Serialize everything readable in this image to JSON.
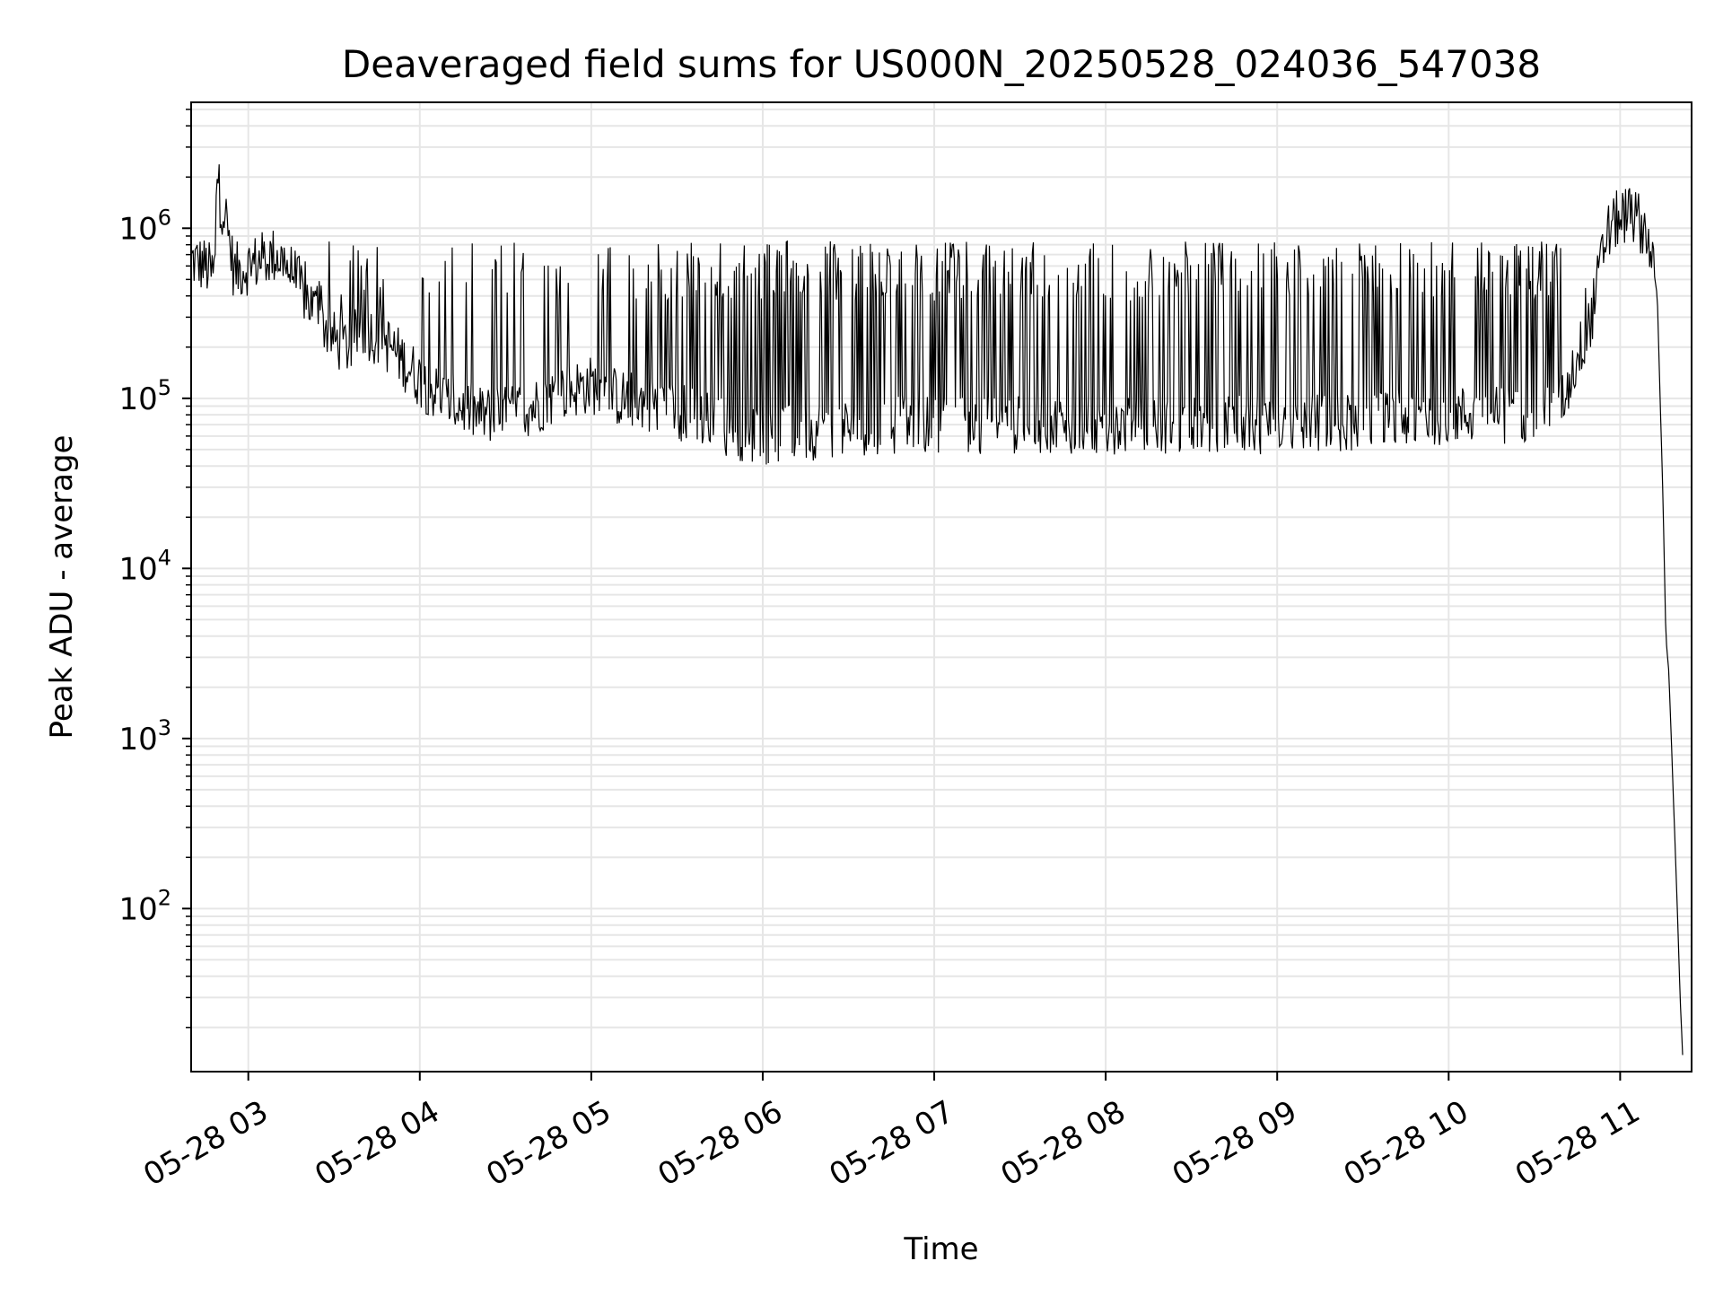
{
  "chart_data": {
    "type": "line",
    "title": "Deaveraged field sums for US000N_20250528_024036_547038",
    "xlabel": "Time",
    "ylabel": "Peak ADU - average",
    "xscale": "time",
    "yscale": "log",
    "xlim": [
      "2025-05-28 02:40",
      "2025-05-28 11:25"
    ],
    "ylim": [
      11,
      5500000
    ],
    "grid": true,
    "line_color": "#000000",
    "grid_color": "#e6e6e6",
    "x_ticks": [
      {
        "label": "05-28 03",
        "value": "2025-05-28 03:00"
      },
      {
        "label": "05-28 04",
        "value": "2025-05-28 04:00"
      },
      {
        "label": "05-28 05",
        "value": "2025-05-28 05:00"
      },
      {
        "label": "05-28 06",
        "value": "2025-05-28 06:00"
      },
      {
        "label": "05-28 07",
        "value": "2025-05-28 07:00"
      },
      {
        "label": "05-28 08",
        "value": "2025-05-28 08:00"
      },
      {
        "label": "05-28 09",
        "value": "2025-05-28 09:00"
      },
      {
        "label": "05-28 10",
        "value": "2025-05-28 10:00"
      },
      {
        "label": "05-28 11",
        "value": "2025-05-28 11:00"
      }
    ],
    "y_ticks": [
      {
        "base": "10",
        "exp": "2",
        "value": 100
      },
      {
        "base": "10",
        "exp": "3",
        "value": 1000
      },
      {
        "base": "10",
        "exp": "4",
        "value": 10000
      },
      {
        "base": "10",
        "exp": "5",
        "value": 100000
      },
      {
        "base": "10",
        "exp": "6",
        "value": 1000000
      }
    ],
    "series": [
      {
        "x": [
          "2025-05-28 02:40",
          "2025-05-28 02:45",
          "2025-05-28 02:48",
          "2025-05-28 02:49",
          "2025-05-28 02:50",
          "2025-05-28 02:52",
          "2025-05-28 02:55",
          "2025-05-28 03:00",
          "2025-05-28 03:05",
          "2025-05-28 03:10",
          "2025-05-28 03:15",
          "2025-05-28 03:20",
          "2025-05-28 03:25",
          "2025-05-28 03:30",
          "2025-05-28 03:35",
          "2025-05-28 03:40",
          "2025-05-28 03:45",
          "2025-05-28 03:50",
          "2025-05-28 03:55",
          "2025-05-28 04:00",
          "2025-05-28 04:05",
          "2025-05-28 04:10",
          "2025-05-28 04:15",
          "2025-05-28 04:20",
          "2025-05-28 04:30",
          "2025-05-28 04:40",
          "2025-05-28 04:50",
          "2025-05-28 05:00",
          "2025-05-28 05:10",
          "2025-05-28 05:20",
          "2025-05-28 05:30",
          "2025-05-28 05:40",
          "2025-05-28 05:50",
          "2025-05-28 06:00",
          "2025-05-28 06:20",
          "2025-05-28 06:40",
          "2025-05-28 07:00",
          "2025-05-28 07:20",
          "2025-05-28 07:40",
          "2025-05-28 08:00",
          "2025-05-28 08:20",
          "2025-05-28 08:40",
          "2025-05-28 09:00",
          "2025-05-28 09:20",
          "2025-05-28 09:40",
          "2025-05-28 10:00",
          "2025-05-28 10:20",
          "2025-05-28 10:30",
          "2025-05-28 10:40",
          "2025-05-28 10:50",
          "2025-05-28 10:55",
          "2025-05-28 11:00",
          "2025-05-28 11:05",
          "2025-05-28 11:10",
          "2025-05-28 11:13",
          "2025-05-28 11:15",
          "2025-05-28 11:16",
          "2025-05-28 11:17",
          "2025-05-28 11:18",
          "2025-05-28 11:19",
          "2025-05-28 11:20",
          "2025-05-28 11:21",
          "2025-05-28 11:22"
        ],
        "y": [
          650000,
          600000,
          520000,
          2500000,
          1500000,
          1200000,
          550000,
          600000,
          650000,
          700000,
          550000,
          400000,
          300000,
          220000,
          200000,
          260000,
          230000,
          200000,
          160000,
          130000,
          110000,
          95000,
          90000,
          80000,
          80000,
          90000,
          110000,
          120000,
          100000,
          95000,
          85000,
          75000,
          65000,
          60000,
          65000,
          70000,
          70000,
          70000,
          70000,
          70000,
          70000,
          70000,
          70000,
          72000,
          75000,
          80000,
          80000,
          85000,
          100000,
          300000,
          900000,
          1200000,
          1200000,
          900000,
          400000,
          25000,
          4000,
          2500,
          900,
          300,
          100,
          30,
          12
        ]
      }
    ]
  }
}
